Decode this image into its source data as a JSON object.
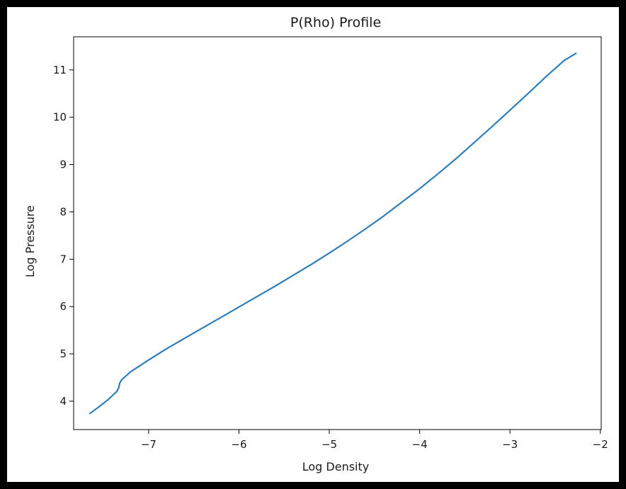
{
  "chart_data": {
    "type": "line",
    "title": "P(Rho) Profile",
    "xlabel": "Log Density",
    "ylabel": "Log Pressure",
    "xlim": [
      -7.83,
      -1.99
    ],
    "ylim": [
      3.4,
      11.7
    ],
    "xticks": [
      -7,
      -6,
      -5,
      -4,
      -3,
      -2
    ],
    "xtick_labels": [
      "−7",
      "−6",
      "−5",
      "−4",
      "−3",
      "−2"
    ],
    "yticks": [
      4,
      5,
      6,
      7,
      8,
      9,
      10,
      11
    ],
    "ytick_labels": [
      "4",
      "5",
      "6",
      "7",
      "8",
      "9",
      "10",
      "11"
    ],
    "grid": false,
    "colors": {
      "line": "#2e7ebc",
      "frame": "#000000",
      "background": "#ffffff",
      "page": "#000000"
    },
    "series": [
      {
        "x": [
          -7.65,
          -7.55,
          -7.45,
          -7.35,
          -7.33,
          -7.32,
          -7.3,
          -7.2,
          -7.0,
          -6.8,
          -6.6,
          -6.4,
          -6.2,
          -6.0,
          -5.8,
          -5.6,
          -5.4,
          -5.2,
          -5.0,
          -4.8,
          -4.6,
          -4.4,
          -4.2,
          -4.0,
          -3.8,
          -3.6,
          -3.4,
          -3.2,
          -3.0,
          -2.8,
          -2.6,
          -2.4,
          -2.27
        ],
        "y": [
          3.74,
          3.88,
          4.03,
          4.21,
          4.29,
          4.38,
          4.45,
          4.62,
          4.87,
          5.11,
          5.33,
          5.55,
          5.77,
          5.99,
          6.21,
          6.43,
          6.66,
          6.89,
          7.13,
          7.38,
          7.64,
          7.91,
          8.2,
          8.49,
          8.8,
          9.12,
          9.46,
          9.8,
          10.15,
          10.5,
          10.86,
          11.2,
          11.35
        ]
      }
    ]
  }
}
